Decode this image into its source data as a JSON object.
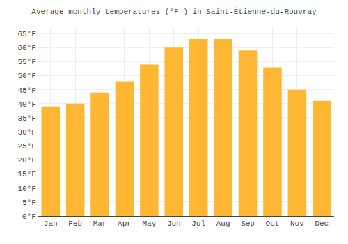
{
  "chart_data": {
    "type": "bar",
    "title": "Average monthly temperatures (°F ) in Saint-Étienne-du-Rouvray",
    "categories": [
      "Jan",
      "Feb",
      "Mar",
      "Apr",
      "May",
      "Jun",
      "Jul",
      "Aug",
      "Sep",
      "Oct",
      "Nov",
      "Dec"
    ],
    "values": [
      39,
      40,
      44,
      48,
      54,
      60,
      63,
      63,
      59,
      53,
      45,
      41
    ],
    "color": "#FFB733",
    "ylim": [
      0,
      67
    ],
    "yticks": [
      {
        "value": 0,
        "label": "0°F"
      },
      {
        "value": 5,
        "label": "5°F"
      },
      {
        "value": 10,
        "label": "10°F"
      },
      {
        "value": 15,
        "label": "15°F"
      },
      {
        "value": 20,
        "label": "20°F"
      },
      {
        "value": 25,
        "label": "25°F"
      },
      {
        "value": 30,
        "label": "30°F"
      },
      {
        "value": 35,
        "label": "35°F"
      },
      {
        "value": 40,
        "label": "40°F"
      },
      {
        "value": 45,
        "label": "45°F"
      },
      {
        "value": 50,
        "label": "50°F"
      },
      {
        "value": 55,
        "label": "55°F"
      },
      {
        "value": 60,
        "label": "60°F"
      },
      {
        "value": 65,
        "label": "65°F"
      }
    ],
    "grid": true
  }
}
